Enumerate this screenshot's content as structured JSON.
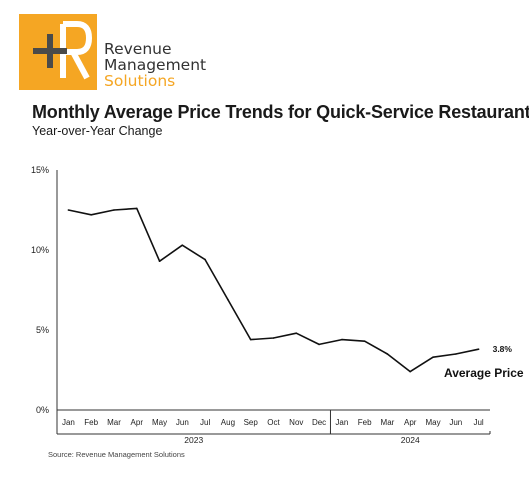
{
  "header": {
    "logo_lines": [
      "Revenue",
      "Management",
      "Solutions"
    ],
    "title": "Monthly Average Price Trends for Quick-Service Restaurants",
    "subtitle": "Year-over-Year Change"
  },
  "source": "Source: Revenue Management Solutions",
  "colors": {
    "logo_orange": "#f5a623",
    "line": "#111111",
    "text": "#1a1a1a"
  },
  "chart_data": {
    "type": "line",
    "title": "Monthly Average Price Trends for Quick-Service Restaurants",
    "subtitle": "Year-over-Year Change",
    "categories": [
      "Jan",
      "Feb",
      "Mar",
      "Apr",
      "May",
      "Jun",
      "Jul",
      "Aug",
      "Sep",
      "Oct",
      "Nov",
      "Dec",
      "Jan",
      "Feb",
      "Mar",
      "Apr",
      "May",
      "Jun",
      "Jul"
    ],
    "year_groups": [
      {
        "label": "2023",
        "start": 0,
        "end": 11
      },
      {
        "label": "2024",
        "start": 12,
        "end": 18
      }
    ],
    "series": [
      {
        "name": "Average Price",
        "values": [
          12.5,
          12.2,
          12.5,
          12.6,
          9.3,
          10.3,
          9.4,
          6.9,
          4.4,
          4.5,
          4.8,
          4.1,
          4.4,
          4.3,
          3.5,
          2.4,
          3.3,
          3.5,
          3.8
        ]
      }
    ],
    "end_label": "3.8%",
    "yticks": [
      "0%",
      "5%",
      "10%",
      "15%"
    ],
    "ylim": [
      0,
      15
    ],
    "grid": false
  }
}
